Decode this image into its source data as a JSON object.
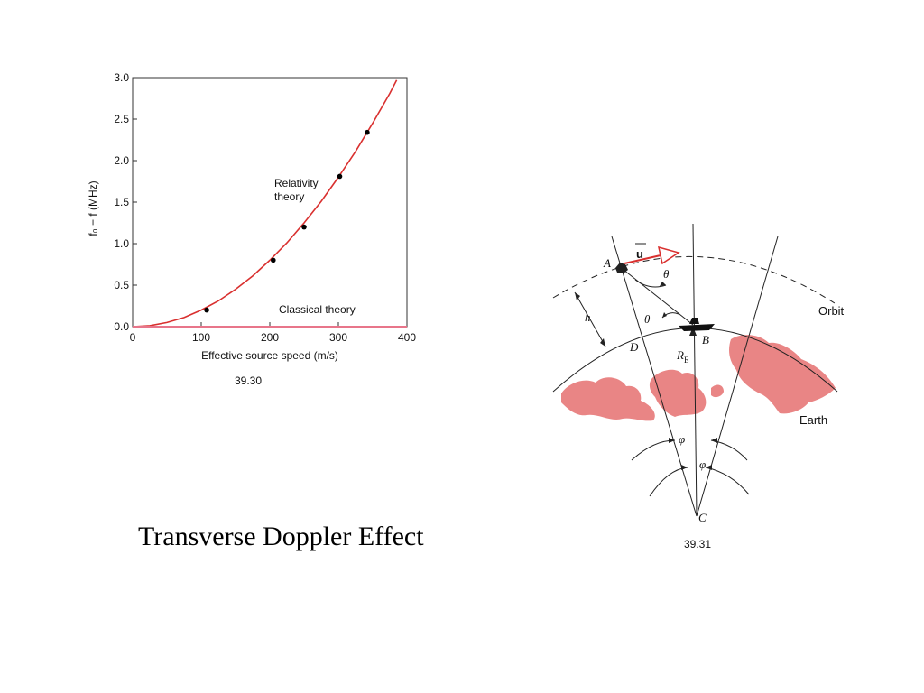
{
  "slide": {
    "title": "Transverse Doppler Effect"
  },
  "chart_data": {
    "type": "line",
    "xlabel": "Effective source speed (m/s)",
    "ylabel": "f₀ − f (MHz)",
    "xlim": [
      0,
      400
    ],
    "ylim": [
      0,
      3.0
    ],
    "xticks": [
      0,
      100,
      200,
      300,
      400
    ],
    "yticks": [
      0.0,
      0.5,
      1.0,
      1.5,
      2.0,
      2.5,
      3.0
    ],
    "ytick_labels": [
      "0.0",
      "0.5",
      "1.0",
      "1.5",
      "2.0",
      "2.5",
      "3.0"
    ],
    "grid": false,
    "series": [
      {
        "name": "Relativity theory",
        "kind": "curve",
        "color": "#d9302f",
        "x": [
          0,
          25,
          50,
          75,
          100,
          125,
          150,
          175,
          200,
          225,
          250,
          275,
          300,
          325,
          350,
          375,
          385
        ],
        "y": [
          0,
          0.012,
          0.05,
          0.11,
          0.2,
          0.31,
          0.45,
          0.61,
          0.8,
          1.01,
          1.25,
          1.51,
          1.8,
          2.11,
          2.45,
          2.81,
          2.97
        ]
      },
      {
        "name": "Classical theory",
        "kind": "line",
        "color": "#e8758a",
        "x": [
          0,
          400
        ],
        "y": [
          0,
          0
        ]
      }
    ],
    "points": {
      "x": [
        108,
        205,
        250,
        302,
        342
      ],
      "y": [
        0.2,
        0.8,
        1.2,
        1.81,
        2.34
      ]
    },
    "annotations": {
      "relativity": [
        "Relativity",
        "theory"
      ],
      "classical": "Classical theory"
    },
    "figure_label": "39.30"
  },
  "diagram": {
    "figure_label": "39.31",
    "labels": {
      "orbit": "Orbit",
      "earth": "Earth",
      "u": "u",
      "A": "A",
      "B": "B",
      "C": "C",
      "D": "D",
      "h": "h",
      "theta": "θ",
      "phi": "φ",
      "re_main": "R",
      "re_sub": "E"
    },
    "colors": {
      "land": "#e98585",
      "arrow": "#d9302f",
      "line": "#222222"
    }
  }
}
